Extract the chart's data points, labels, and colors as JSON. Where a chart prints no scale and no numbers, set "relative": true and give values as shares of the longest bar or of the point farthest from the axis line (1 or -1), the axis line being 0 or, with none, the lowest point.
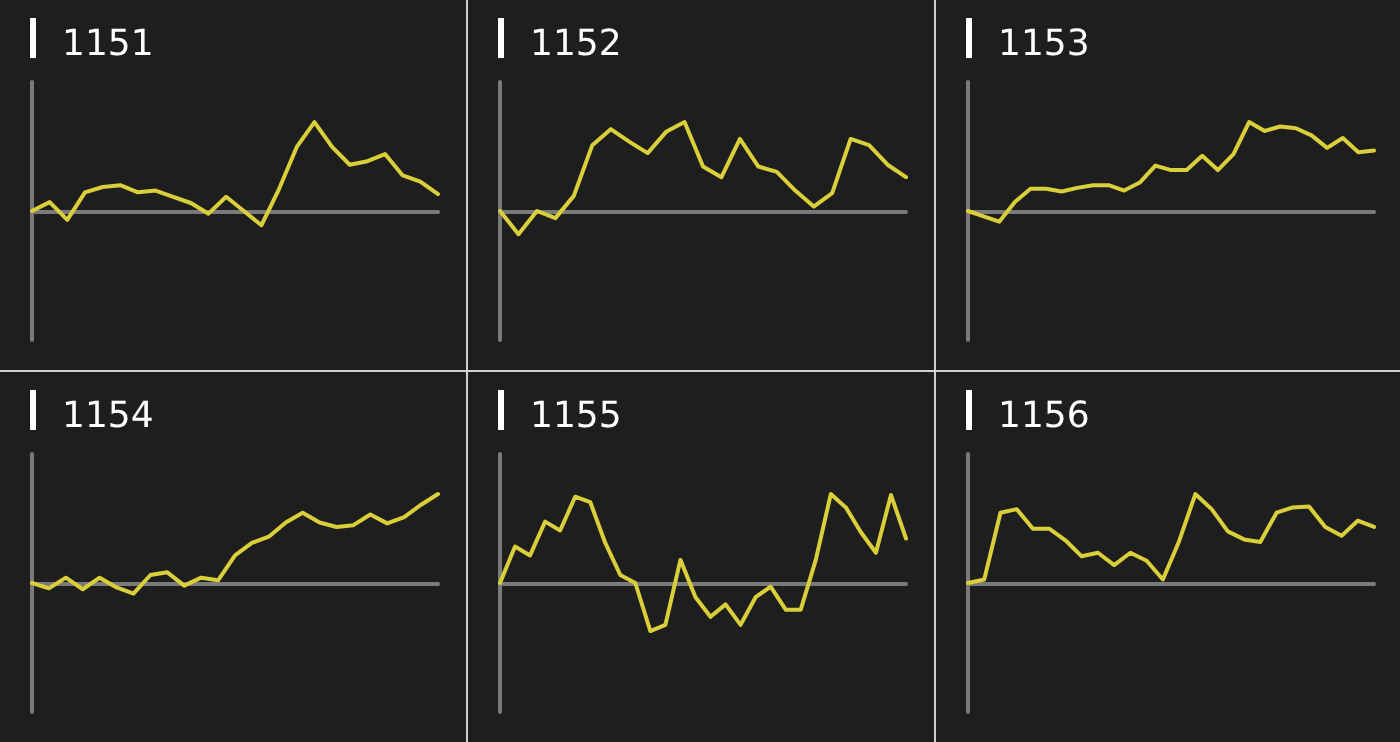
{
  "chart_data": [
    {
      "type": "line",
      "title": "1151",
      "relative": true,
      "grid": false,
      "line_style": "solid",
      "categories": [
        null,
        null,
        null,
        null,
        null,
        null,
        null,
        null,
        null,
        null,
        null,
        null,
        null,
        null,
        null,
        null,
        null,
        null,
        null,
        null,
        null,
        null,
        null,
        null
      ],
      "series": [
        {
          "color": "#d9cf3a",
          "values": [
            0,
            0.1,
            -0.1,
            0.21,
            0.27,
            0.29,
            0.21,
            0.23,
            0.16,
            0.09,
            -0.03,
            0.16,
            0,
            -0.16,
            0.25,
            0.72,
            1,
            0.72,
            0.52,
            0.56,
            0.64,
            0.4,
            0.33,
            0.19
          ]
        }
      ]
    },
    {
      "type": "line",
      "title": "1152",
      "relative": true,
      "grid": false,
      "line_style": "solid",
      "categories": [
        null,
        null,
        null,
        null,
        null,
        null,
        null,
        null,
        null,
        null,
        null,
        null,
        null,
        null,
        null,
        null,
        null,
        null,
        null,
        null,
        null,
        null,
        null
      ],
      "series": [
        {
          "color": "#d9cf3a",
          "values": [
            0,
            -0.26,
            0,
            -0.08,
            0.17,
            0.74,
            0.92,
            0.78,
            0.65,
            0.89,
            1,
            0.5,
            0.38,
            0.81,
            0.5,
            0.44,
            0.23,
            0.05,
            0.2,
            0.81,
            0.74,
            0.52,
            0.38
          ]
        }
      ]
    },
    {
      "type": "line",
      "title": "1153",
      "relative": true,
      "grid": false,
      "line_style": "solid",
      "categories": [
        null,
        null,
        null,
        null,
        null,
        null,
        null,
        null,
        null,
        null,
        null,
        null,
        null,
        null,
        null,
        null,
        null,
        null,
        null,
        null,
        null,
        null,
        null,
        null,
        null,
        null,
        null
      ],
      "series": [
        {
          "color": "#d9cf3a",
          "values": [
            0,
            -0.06,
            -0.12,
            0.1,
            0.25,
            0.25,
            0.22,
            0.26,
            0.29,
            0.29,
            0.23,
            0.32,
            0.51,
            0.46,
            0.46,
            0.62,
            0.46,
            0.64,
            1,
            0.9,
            0.95,
            0.93,
            0.85,
            0.71,
            0.82,
            0.66,
            0.68
          ]
        }
      ]
    },
    {
      "type": "line",
      "title": "1154",
      "relative": true,
      "grid": false,
      "line_style": "solid",
      "categories": [
        null,
        null,
        null,
        null,
        null,
        null,
        null,
        null,
        null,
        null,
        null,
        null,
        null,
        null,
        null,
        null,
        null,
        null,
        null,
        null,
        null,
        null,
        null,
        null,
        null
      ],
      "series": [
        {
          "color": "#d9cf3a",
          "values": [
            0,
            -0.06,
            0.06,
            -0.07,
            0.06,
            -0.05,
            -0.12,
            0.09,
            0.12,
            -0.03,
            0.06,
            0.03,
            0.31,
            0.45,
            0.52,
            0.68,
            0.79,
            0.68,
            0.63,
            0.65,
            0.77,
            0.67,
            0.74,
            0.88,
            1
          ]
        }
      ]
    },
    {
      "type": "line",
      "title": "1155",
      "relative": true,
      "grid": false,
      "line_style": "solid",
      "categories": [
        null,
        null,
        null,
        null,
        null,
        null,
        null,
        null,
        null,
        null,
        null,
        null,
        null,
        null,
        null,
        null,
        null,
        null,
        null,
        null,
        null,
        null,
        null,
        null,
        null,
        null,
        null,
        null
      ],
      "series": [
        {
          "color": "#d9cf3a",
          "values": [
            0,
            0.41,
            0.31,
            0.69,
            0.59,
            0.97,
            0.91,
            0.45,
            0.09,
            0,
            -0.54,
            -0.47,
            0.26,
            -0.16,
            -0.38,
            -0.24,
            -0.47,
            -0.16,
            -0.04,
            -0.3,
            -0.3,
            0.26,
            1,
            0.85,
            0.57,
            0.34,
            0.99,
            0.5
          ]
        }
      ]
    },
    {
      "type": "line",
      "title": "1156",
      "relative": true,
      "grid": false,
      "line_style": "solid",
      "categories": [
        null,
        null,
        null,
        null,
        null,
        null,
        null,
        null,
        null,
        null,
        null,
        null,
        null,
        null,
        null,
        null,
        null,
        null,
        null,
        null,
        null,
        null,
        null,
        null,
        null,
        null
      ],
      "series": [
        {
          "color": "#d9cf3a",
          "values": [
            0,
            0.04,
            0.79,
            0.83,
            0.61,
            0.61,
            0.48,
            0.3,
            0.34,
            0.2,
            0.34,
            0.25,
            0.04,
            0.47,
            1,
            0.83,
            0.58,
            0.49,
            0.46,
            0.79,
            0.85,
            0.86,
            0.63,
            0.53,
            0.7,
            0.63
          ]
        }
      ]
    }
  ]
}
